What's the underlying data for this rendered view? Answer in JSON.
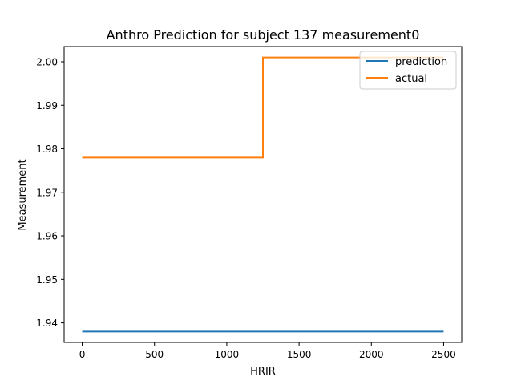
{
  "chart_data": {
    "type": "line",
    "title": "Anthro Prediction for subject 137 measurement0",
    "xlabel": "HRIR",
    "ylabel": "Measurement",
    "xlim": [
      -125,
      2625
    ],
    "ylim": [
      1.9355,
      2.0035
    ],
    "xticks": [
      0,
      500,
      1000,
      1500,
      2000,
      2500
    ],
    "yticks": [
      1.94,
      1.95,
      1.96,
      1.97,
      1.98,
      1.99,
      2.0
    ],
    "ytick_labels": [
      "1.94",
      "1.95",
      "1.96",
      "1.97",
      "1.98",
      "1.99",
      "2.00"
    ],
    "grid": false,
    "legend_position": "top-right",
    "series": [
      {
        "name": "prediction",
        "color": "#1f77b4",
        "x": [
          0,
          2500
        ],
        "y": [
          1.938,
          1.938
        ]
      },
      {
        "name": "actual",
        "color": "#ff7f0e",
        "x": [
          0,
          1250,
          1250,
          2500
        ],
        "y": [
          1.978,
          1.978,
          2.001,
          2.001
        ]
      }
    ]
  }
}
